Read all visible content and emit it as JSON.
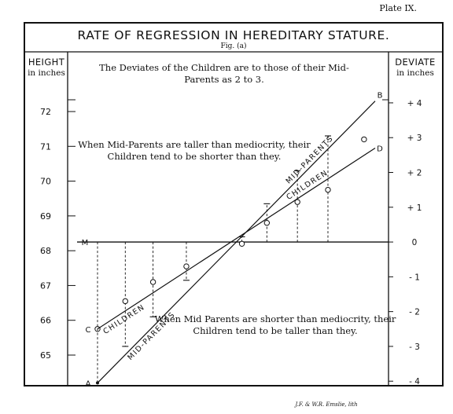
{
  "plate_label": "Plate IX.",
  "credit": "J.F. & W.R. Emslie, lith",
  "chart_data": {
    "type": "line",
    "title": "RATE OF REGRESSION IN HEREDITARY STATURE.",
    "subtitle": "Fig. (a)",
    "left_axis": {
      "title": "HEIGHT",
      "unit": "in inches",
      "ticks": [
        "72",
        "71",
        "70",
        "69",
        "68",
        "67",
        "66",
        "65"
      ],
      "tick_values": [
        72,
        71,
        70,
        69,
        68,
        67,
        66,
        65
      ],
      "ylim": [
        64.4,
        72.4
      ],
      "mediocrity_label": "M",
      "mediocrity_value": 68.25
    },
    "right_axis": {
      "title": "DEVIATE",
      "unit": "in inches",
      "ticks": [
        "+ 4",
        "+ 3",
        "+ 2",
        "+ 1",
        "0",
        "- 1",
        "- 2",
        "- 3",
        "- 4"
      ],
      "tick_values": [
        4,
        3,
        2,
        1,
        0,
        -1,
        -2,
        -3,
        -4
      ]
    },
    "xlim": [
      0,
      10
    ],
    "series": [
      {
        "name": "MID-PARENTS",
        "start_label": "A",
        "end_label": "B",
        "x": [
          0,
          10
        ],
        "y": [
          64.2,
          72.3
        ],
        "endpoints": [
          64.2,
          72.3
        ],
        "points": [
          {
            "x": 1.0,
            "y": 65.25
          },
          {
            "x": 2.0,
            "y": 66.1
          },
          {
            "x": 3.2,
            "y": 67.15
          },
          {
            "x": 5.2,
            "y": 68.4
          },
          {
            "x": 6.1,
            "y": 69.35
          },
          {
            "x": 7.2,
            "y": 70.3
          },
          {
            "x": 8.3,
            "y": 71.3
          }
        ]
      },
      {
        "name": "CHILDREN",
        "start_label": "C",
        "end_label": "D",
        "x": [
          0,
          10
        ],
        "y": [
          65.75,
          70.95
        ],
        "endpoints": [
          65.75,
          70.95
        ],
        "points": [
          {
            "x": 1.0,
            "y": 66.55
          },
          {
            "x": 2.0,
            "y": 67.1
          },
          {
            "x": 3.2,
            "y": 67.55
          },
          {
            "x": 5.2,
            "y": 68.2
          },
          {
            "x": 6.1,
            "y": 68.8
          },
          {
            "x": 7.2,
            "y": 69.4
          },
          {
            "x": 8.3,
            "y": 69.75
          },
          {
            "x": 9.6,
            "y": 71.2
          }
        ]
      }
    ],
    "annotations": {
      "top": "The Deviates of the Children are to those of their Mid-Parents as 2 to 3.",
      "upper": "When Mid-Parents are taller than mediocrity, their Children tend to be shorter than they.",
      "lower": "When Mid Parents are shorter than mediocrity, their Children tend to be taller than they."
    }
  }
}
